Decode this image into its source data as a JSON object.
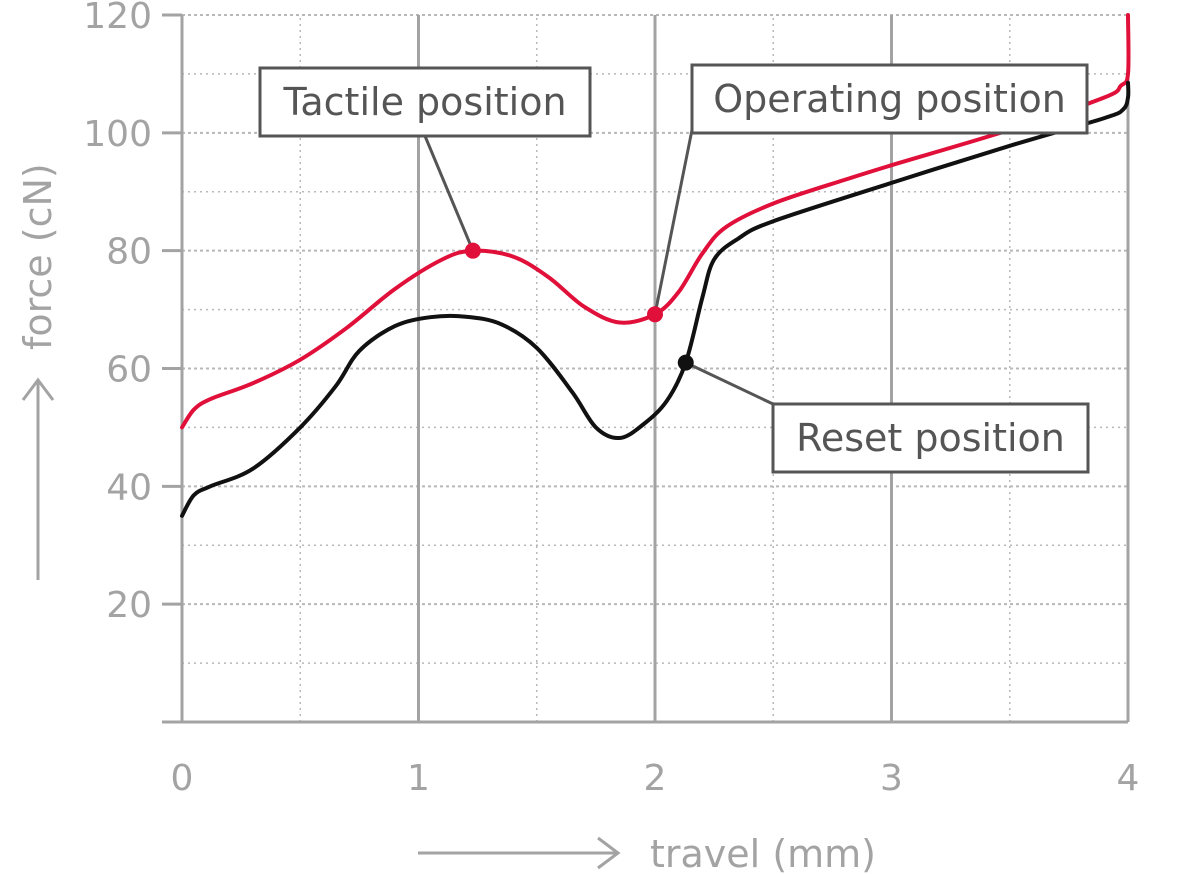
{
  "chart_data": {
    "type": "line",
    "xlabel": "travel (mm)",
    "ylabel": "force (cN)",
    "xlim": [
      0,
      4
    ],
    "ylim": [
      0,
      120
    ],
    "x_ticks": [
      "0",
      "1",
      "2",
      "3",
      "4"
    ],
    "y_ticks": [
      "20",
      "40",
      "60",
      "80",
      "100",
      "120"
    ],
    "grid": true,
    "series": [
      {
        "color": "#e0103a",
        "points": [
          [
            0,
            50
          ],
          [
            0.05,
            53
          ],
          [
            0.12,
            54.8
          ],
          [
            0.3,
            57.5
          ],
          [
            0.5,
            61.5
          ],
          [
            0.7,
            67
          ],
          [
            0.9,
            73.5
          ],
          [
            1.1,
            78.5
          ],
          [
            1.23,
            80
          ],
          [
            1.4,
            79
          ],
          [
            1.55,
            75.5
          ],
          [
            1.7,
            70.5
          ],
          [
            1.85,
            67.8
          ],
          [
            2.0,
            69.2
          ],
          [
            2.1,
            73
          ],
          [
            2.2,
            79.5
          ],
          [
            2.3,
            84
          ],
          [
            2.5,
            88
          ],
          [
            2.8,
            92
          ],
          [
            3.0,
            94.5
          ],
          [
            3.5,
            100.5
          ],
          [
            3.9,
            106
          ],
          [
            3.97,
            108
          ],
          [
            4.0,
            110
          ],
          [
            4.0,
            120
          ]
        ]
      },
      {
        "color": "#111111",
        "points": [
          [
            0,
            35
          ],
          [
            0.05,
            38.5
          ],
          [
            0.12,
            40
          ],
          [
            0.3,
            43
          ],
          [
            0.5,
            50
          ],
          [
            0.65,
            57
          ],
          [
            0.75,
            63
          ],
          [
            0.9,
            67.2
          ],
          [
            1.05,
            68.7
          ],
          [
            1.2,
            68.8
          ],
          [
            1.35,
            67.5
          ],
          [
            1.5,
            63.5
          ],
          [
            1.65,
            56
          ],
          [
            1.75,
            50
          ],
          [
            1.85,
            48.2
          ],
          [
            1.95,
            50.5
          ],
          [
            2.05,
            54.5
          ],
          [
            2.13,
            61
          ],
          [
            2.2,
            72
          ],
          [
            2.25,
            78.5
          ],
          [
            2.35,
            82
          ],
          [
            2.5,
            85
          ],
          [
            3.0,
            91.5
          ],
          [
            3.5,
            97.8
          ],
          [
            3.9,
            102.5
          ],
          [
            3.98,
            104
          ],
          [
            4.0,
            106
          ],
          [
            4.0,
            108.5
          ]
        ]
      }
    ],
    "annotations": [
      {
        "label": "Tactile position",
        "point": [
          1.23,
          80
        ],
        "color": "#e0103a"
      },
      {
        "label": "Operating position",
        "point": [
          2.0,
          69.2
        ],
        "color": "#e0103a"
      },
      {
        "label": "Reset position",
        "point": [
          2.13,
          61
        ],
        "color": "#111111"
      }
    ]
  }
}
